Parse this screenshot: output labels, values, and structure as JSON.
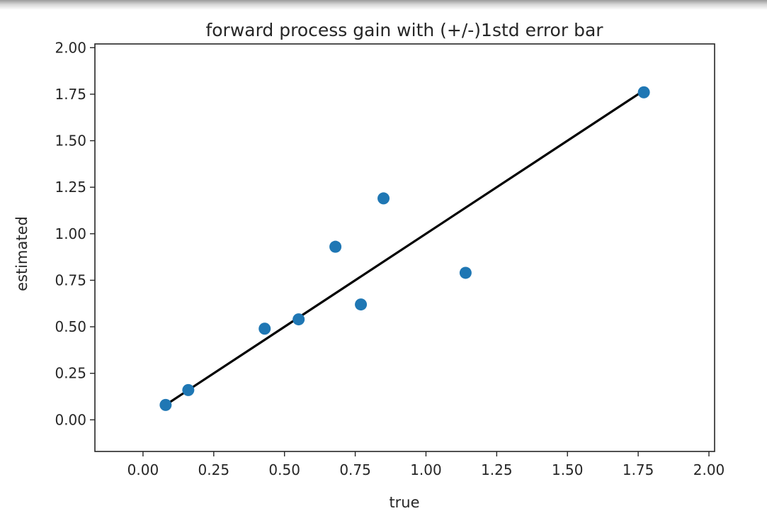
{
  "chart_data": {
    "type": "scatter",
    "title": "forward process gain with (+/-)1std error bar",
    "xlabel": "true",
    "ylabel": "estimated",
    "xlim": [
      -0.17,
      2.02
    ],
    "ylim": [
      -0.17,
      2.02
    ],
    "xticks": [
      0.0,
      0.25,
      0.5,
      0.75,
      1.0,
      1.25,
      1.5,
      1.75,
      2.0
    ],
    "xtick_labels": [
      "0.00",
      "0.25",
      "0.50",
      "0.75",
      "1.00",
      "1.25",
      "1.50",
      "1.75",
      "2.00"
    ],
    "yticks": [
      0.0,
      0.25,
      0.5,
      0.75,
      1.0,
      1.25,
      1.5,
      1.75,
      2.0
    ],
    "ytick_labels": [
      "0.00",
      "0.25",
      "0.50",
      "0.75",
      "1.00",
      "1.25",
      "1.50",
      "1.75",
      "2.00"
    ],
    "grid": false,
    "points": [
      {
        "x": 0.08,
        "y": 0.08
      },
      {
        "x": 0.16,
        "y": 0.16
      },
      {
        "x": 0.43,
        "y": 0.49
      },
      {
        "x": 0.55,
        "y": 0.54
      },
      {
        "x": 0.68,
        "y": 0.93
      },
      {
        "x": 0.77,
        "y": 0.62
      },
      {
        "x": 0.85,
        "y": 1.19
      },
      {
        "x": 1.14,
        "y": 0.79
      },
      {
        "x": 1.77,
        "y": 1.76
      }
    ],
    "reference_line": {
      "x": [
        0.08,
        1.77
      ],
      "y": [
        0.08,
        1.77
      ]
    },
    "colors": {
      "points": "#1f77b4",
      "line": "#000000",
      "axes": "#262626"
    }
  }
}
